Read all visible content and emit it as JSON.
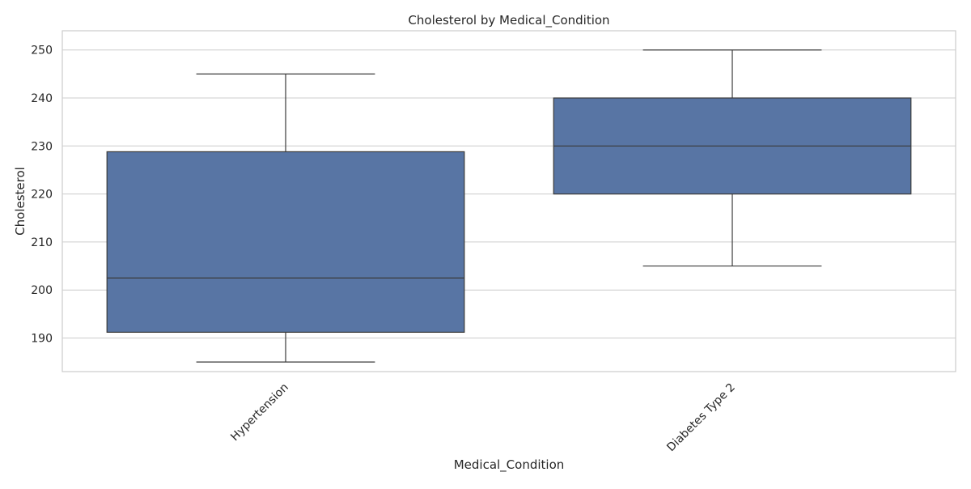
{
  "chart_data": {
    "type": "box",
    "title": "Cholesterol by Medical_Condition",
    "xlabel": "Medical_Condition",
    "ylabel": "Cholesterol",
    "categories": [
      "Hypertension",
      "Diabetes Type 2"
    ],
    "boxes": [
      {
        "category": "Hypertension",
        "whisker_low": 185,
        "q1": 191.2,
        "median": 202.5,
        "q3": 228.8,
        "whisker_high": 245
      },
      {
        "category": "Diabetes Type 2",
        "whisker_low": 205,
        "q1": 220,
        "median": 230,
        "q3": 240,
        "whisker_high": 250
      }
    ],
    "ylim": [
      183,
      254
    ],
    "yticks": [
      190,
      200,
      210,
      220,
      230,
      240,
      250
    ],
    "grid": "horizontal",
    "x_tick_rotation": 45,
    "colors": {
      "box": "#5875a4",
      "line": "#3a3a3a",
      "grid": "#cccccc"
    }
  }
}
